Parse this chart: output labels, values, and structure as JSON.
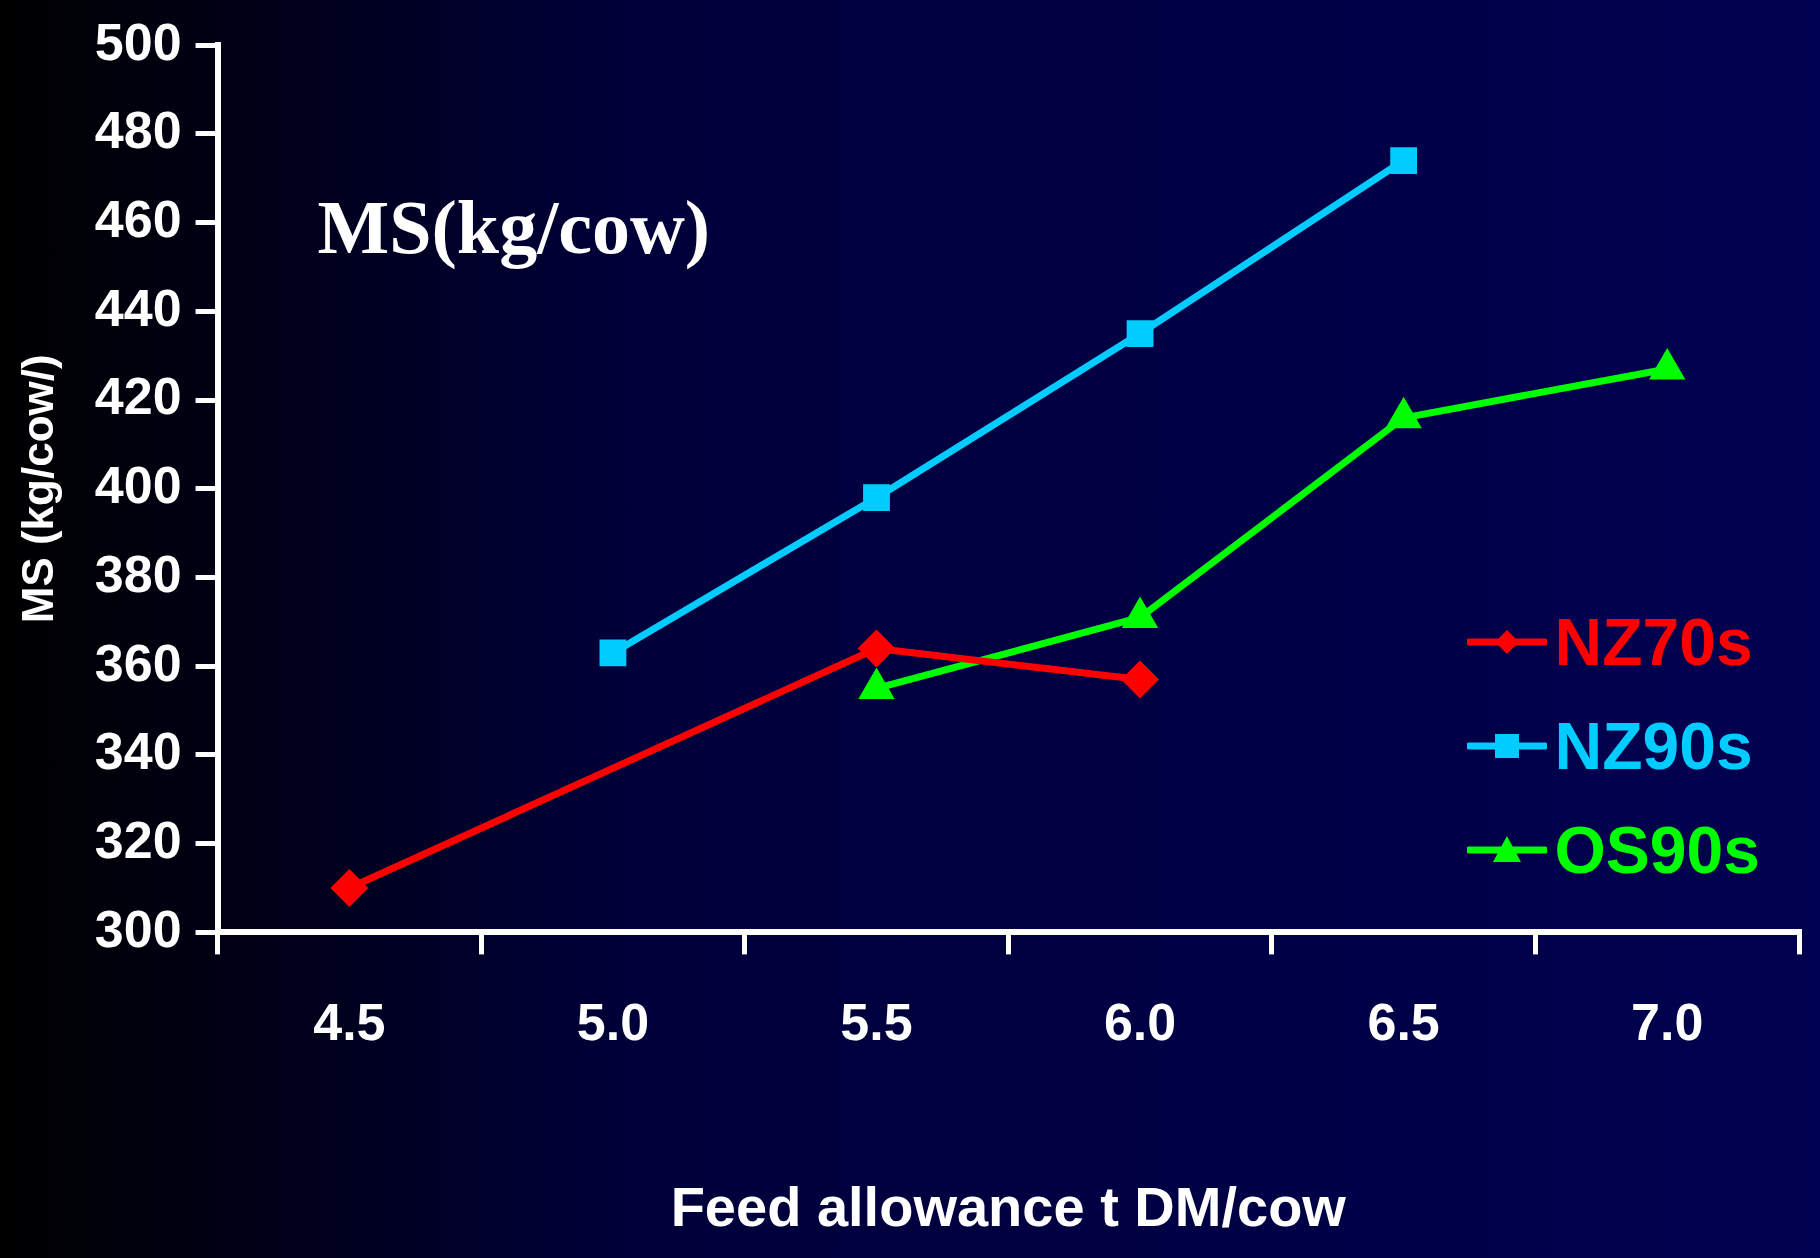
{
  "chart_data": {
    "type": "line",
    "xlabel": "Feed allowance t DM/cow",
    "ylabel": "MS (kg/cow/)",
    "annotations": [
      "MS(kg/cow)"
    ],
    "categories": [
      "4.5",
      "5.0",
      "5.5",
      "6.0",
      "6.5",
      "7.0"
    ],
    "ylim": [
      300,
      500
    ],
    "yticks": [
      300,
      320,
      340,
      360,
      380,
      400,
      420,
      440,
      460,
      480,
      500
    ],
    "grid": false,
    "legend": "right",
    "series": [
      {
        "name": "NZ70s",
        "color": "#ff0000",
        "marker": "diamond",
        "values": [
          310,
          null,
          364,
          357,
          null,
          null
        ]
      },
      {
        "name": "NZ90s",
        "color": "#00ccff",
        "marker": "square",
        "values": [
          null,
          363,
          398,
          435,
          474,
          null
        ]
      },
      {
        "name": "OS90s",
        "color": "#00ff00",
        "marker": "triangle",
        "values": [
          null,
          null,
          355,
          371,
          416,
          427
        ]
      }
    ]
  }
}
